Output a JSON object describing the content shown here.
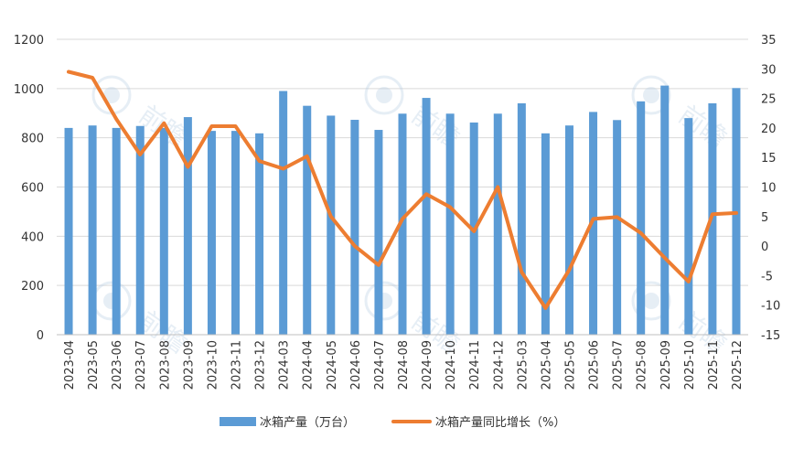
{
  "chart_data": {
    "type": "bar+line",
    "categories": [
      "2023-04",
      "2023-05",
      "2023-06",
      "2023-07",
      "2023-08",
      "2023-09",
      "2023-10",
      "2023-11",
      "2023-12",
      "2024-03",
      "2024-04",
      "2024-05",
      "2024-06",
      "2024-07",
      "2024-08",
      "2024-09",
      "2024-10",
      "2024-11",
      "2024-12",
      "2025-03",
      "2025-04",
      "2025-05",
      "2025-06",
      "2025-07",
      "2025-08",
      "2025-09",
      "2025-10",
      "2025-11",
      "2025-12"
    ],
    "series": [
      {
        "name": "冰箱产量（万台）",
        "type": "bar",
        "axis": "left",
        "color": "#5b9bd5",
        "values": [
          840,
          850,
          840,
          848,
          840,
          884,
          828,
          828,
          818,
          990,
          930,
          890,
          873,
          832,
          898,
          962,
          898,
          862,
          898,
          940,
          818,
          850,
          905,
          872,
          948,
          1012,
          880,
          940,
          1002
        ]
      },
      {
        "name": "冰箱产量同比增长（%）",
        "type": "line",
        "axis": "right",
        "color": "#ed7d31",
        "values": [
          29.5,
          28.5,
          21.5,
          15.5,
          20.8,
          13.4,
          20.3,
          20.3,
          14.4,
          13.1,
          15.2,
          5.0,
          0.0,
          -3.2,
          4.6,
          8.8,
          6.6,
          2.5,
          10.0,
          -4.4,
          -10.5,
          -4.0,
          4.6,
          4.9,
          2.2,
          -2.0,
          -6.0,
          5.4,
          5.6
        ]
      }
    ],
    "yleft": {
      "min": 0,
      "max": 1200,
      "step": 200,
      "ticks": [
        "0",
        "200",
        "400",
        "600",
        "800",
        "1000",
        "1200"
      ]
    },
    "yright": {
      "min": -15,
      "max": 35,
      "step": 5,
      "ticks": [
        "-15",
        "-10",
        "-5",
        "0",
        "5",
        "10",
        "15",
        "20",
        "25",
        "30",
        "35"
      ]
    },
    "grid": true,
    "legend_position": "bottom",
    "watermark": "前瞻"
  }
}
